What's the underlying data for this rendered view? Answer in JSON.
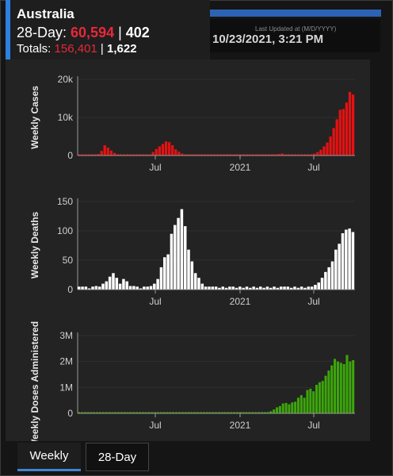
{
  "popup": {
    "title": "Australia",
    "line1_prefix": "28-Day: ",
    "line1_cases": "60,594",
    "line1_sep": " | ",
    "line1_deaths": "402",
    "line2_prefix": "Totals: ",
    "line2_cases": "156,401",
    "line2_sep": " | ",
    "line2_deaths": "1,622"
  },
  "updated": {
    "label": "Last Updated at (M/D/YYYY)",
    "value": "10/23/2021, 3:21 PM"
  },
  "tabs": [
    {
      "label": "Weekly"
    },
    {
      "label": "28-Day"
    }
  ],
  "colors": {
    "cases": "#e31212",
    "deaths": "#ffffff",
    "doses": "#3ca60a",
    "accent": "#2d7fe0"
  },
  "chart_data": [
    {
      "type": "bar",
      "ylabel": "Weekly Cases",
      "yticks": [
        "0",
        "10k",
        "20k"
      ],
      "ylim": [
        0,
        20000
      ],
      "xticks": [
        "Jul",
        "2021",
        "Jul"
      ],
      "values": [
        150,
        150,
        150,
        150,
        150,
        150,
        400,
        1200,
        2700,
        2100,
        1300,
        700,
        350,
        200,
        150,
        150,
        150,
        150,
        150,
        150,
        150,
        150,
        300,
        900,
        1700,
        2400,
        3000,
        3700,
        3500,
        2700,
        1600,
        1000,
        500,
        300,
        150,
        150,
        150,
        150,
        150,
        150,
        150,
        150,
        150,
        150,
        150,
        250,
        350,
        300,
        150,
        150,
        150,
        150,
        150,
        150,
        150,
        150,
        150,
        150,
        150,
        150,
        150,
        150,
        400,
        550,
        300,
        150,
        150,
        150,
        150,
        150,
        150,
        200,
        300,
        500,
        900,
        1500,
        2400,
        3400,
        5000,
        7200,
        9500,
        12000,
        12200,
        13900,
        16700,
        16000
      ]
    },
    {
      "type": "bar",
      "ylabel": "Weekly Deaths",
      "yticks": [
        "0",
        "50",
        "100",
        "150"
      ],
      "ylim": [
        0,
        150
      ],
      "xticks": [
        "Jul",
        "2021",
        "Jul"
      ],
      "values": [
        5,
        5,
        5,
        0,
        5,
        6,
        5,
        10,
        14,
        22,
        28,
        20,
        10,
        18,
        14,
        6,
        6,
        5,
        0,
        5,
        5,
        6,
        10,
        18,
        38,
        55,
        60,
        95,
        110,
        122,
        137,
        108,
        68,
        48,
        28,
        20,
        10,
        5,
        5,
        5,
        5,
        3,
        5,
        3,
        5,
        5,
        3,
        5,
        3,
        5,
        3,
        5,
        3,
        5,
        3,
        5,
        3,
        5,
        3,
        5,
        5,
        5,
        3,
        5,
        3,
        5,
        3,
        5,
        5,
        8,
        12,
        20,
        30,
        38,
        48,
        68,
        78,
        96,
        102,
        104,
        98
      ]
    },
    {
      "type": "bar",
      "ylabel": "Weekly Doses Administered",
      "yticks": [
        "0",
        "1M",
        "2M",
        "3M"
      ],
      "ylim": [
        0,
        3000000
      ],
      "xticks": [
        "Jul",
        "2021",
        "Jul"
      ],
      "values": [
        30000,
        30000,
        30000,
        30000,
        30000,
        30000,
        30000,
        30000,
        30000,
        30000,
        30000,
        30000,
        30000,
        30000,
        30000,
        30000,
        30000,
        30000,
        30000,
        30000,
        30000,
        30000,
        30000,
        30000,
        30000,
        30000,
        30000,
        30000,
        30000,
        30000,
        30000,
        30000,
        30000,
        30000,
        30000,
        30000,
        30000,
        30000,
        30000,
        30000,
        30000,
        30000,
        30000,
        30000,
        30000,
        30000,
        30000,
        30000,
        30000,
        30000,
        30000,
        30000,
        30000,
        30000,
        30000,
        30000,
        30000,
        30000,
        30000,
        30000,
        30000,
        30000,
        30000,
        80000,
        150000,
        230000,
        280000,
        380000,
        400000,
        350000,
        420000,
        450000,
        600000,
        700000,
        600000,
        900000,
        950000,
        850000,
        1100000,
        1200000,
        1250000,
        1450000,
        1650000,
        1850000,
        2100000,
        2000000,
        1950000,
        1900000,
        2250000,
        2000000,
        2050000
      ]
    }
  ]
}
